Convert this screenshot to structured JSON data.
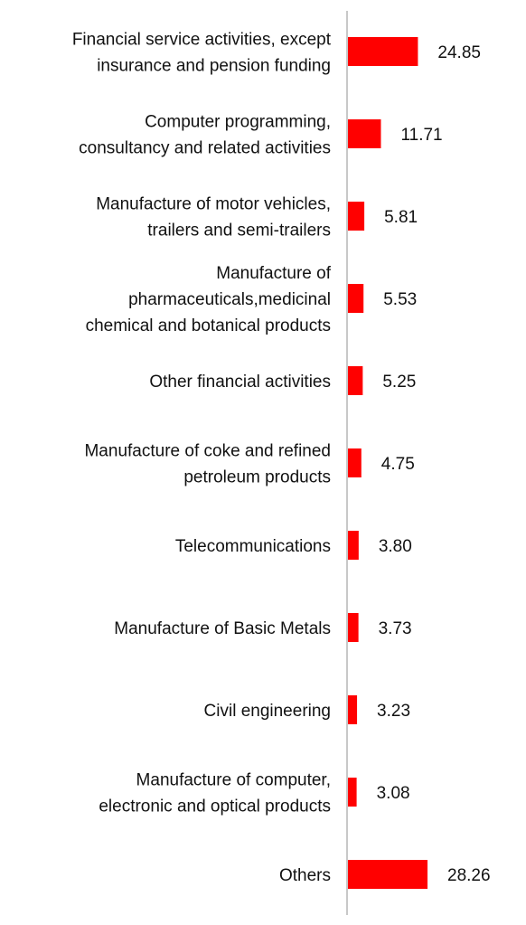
{
  "chart_data": {
    "type": "bar",
    "orientation": "horizontal",
    "categories": [
      [
        "Financial service activities, except",
        "insurance and pension funding"
      ],
      [
        "Computer programming,",
        "consultancy and related activities"
      ],
      [
        "Manufacture of motor vehicles,",
        "trailers and semi-trailers"
      ],
      [
        "Manufacture of",
        "pharmaceuticals,medicinal",
        "chemical and botanical products"
      ],
      [
        "Other financial activities"
      ],
      [
        "Manufacture of coke and refined",
        "petroleum products"
      ],
      [
        "Telecommunications"
      ],
      [
        "Manufacture of Basic Metals"
      ],
      [
        "Civil engineering"
      ],
      [
        "Manufacture of computer,",
        "electronic and optical products"
      ],
      [
        "Others"
      ]
    ],
    "values": [
      24.85,
      11.71,
      5.81,
      5.53,
      5.25,
      4.75,
      3.8,
      3.73,
      3.23,
      3.08,
      28.26
    ],
    "value_labels": [
      "24.85",
      "11.71",
      "5.81",
      "5.53",
      "5.25",
      "4.75",
      "3.80",
      "3.73",
      "3.23",
      "3.08",
      "28.26"
    ],
    "title": "",
    "xlabel": "",
    "ylabel": "",
    "grid": false,
    "legend": "none",
    "colors": {
      "bar": "#ff0000",
      "axis": "#c8c8c8",
      "text": "#111111"
    }
  }
}
